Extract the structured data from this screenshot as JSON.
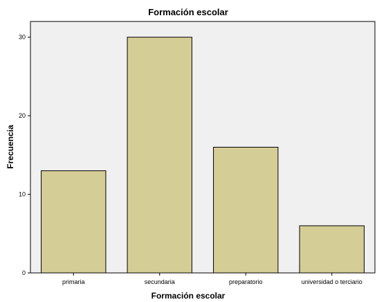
{
  "chart_data": {
    "type": "bar",
    "title": "Formación escolar",
    "xlabel": "Formación escolar",
    "ylabel": "Frecuencia",
    "categories": [
      "primaria",
      "secundaria",
      "preparatorio",
      "universidad o terciario"
    ],
    "values": [
      13,
      30,
      16,
      6
    ],
    "ylim": [
      0,
      32
    ],
    "yticks": [
      0,
      10,
      20,
      30
    ],
    "grid": false,
    "colors": {
      "bar_fill": "#d4cd96",
      "bar_stroke": "#000000",
      "plot_background": "#f0f0f0"
    }
  }
}
